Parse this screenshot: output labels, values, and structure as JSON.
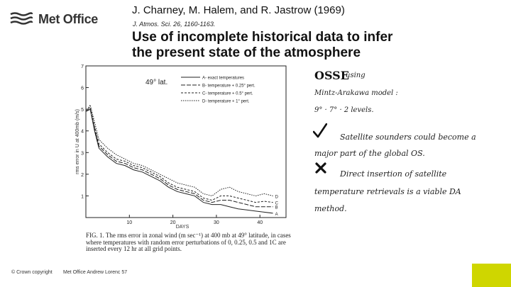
{
  "logo": {
    "text": "Met Office"
  },
  "header": {
    "authors": "J. Charney, M. Halem, and R. Jastrow (1969)",
    "journal": "J. Atmos. Sci. 26, 1160-1163.",
    "title_line1": "Use of incomplete historical data to infer",
    "title_line2": "the present state of the atmosphere"
  },
  "figure": {
    "lat_label": "49° lat.",
    "legend": [
      "A- exact temperatures",
      "B- temperature + 0.25° pert.",
      "C- temperature + 0.5° pert.",
      "D- temperature + 1° pert."
    ],
    "ylabel": "rms error in U at 400mb (m/s)",
    "xlabel": "DAYS",
    "yticks": [
      "7",
      "6",
      "5",
      "4",
      "3",
      "2",
      "1"
    ],
    "xticks": [
      "10",
      "20",
      "30",
      "40"
    ],
    "end_labels": [
      "D",
      "C",
      "B",
      "A"
    ]
  },
  "chart_data": {
    "type": "line",
    "title": "49° lat.",
    "xlabel": "DAYS",
    "ylabel": "rms error in U at 400mb (m/s)",
    "xlim": [
      0,
      46
    ],
    "ylim": [
      0,
      7
    ],
    "x": [
      0,
      1,
      2,
      3,
      5,
      7,
      9,
      11,
      13,
      15,
      17,
      19,
      21,
      23,
      25,
      27,
      29,
      31,
      33,
      35,
      37,
      39,
      41,
      43
    ],
    "series": [
      {
        "name": "D- temperature + 1° pert.",
        "values": [
          4.9,
          5.2,
          4.4,
          3.6,
          3.2,
          2.9,
          2.7,
          2.5,
          2.4,
          2.2,
          2.0,
          1.8,
          1.6,
          1.5,
          1.4,
          1.1,
          1.0,
          1.3,
          1.4,
          1.2,
          1.1,
          1.0,
          1.1,
          1.0
        ]
      },
      {
        "name": "C- temperature + 0.5° pert.",
        "values": [
          4.9,
          5.1,
          4.2,
          3.4,
          3.0,
          2.7,
          2.6,
          2.4,
          2.3,
          2.1,
          1.9,
          1.6,
          1.4,
          1.3,
          1.2,
          0.9,
          0.8,
          1.0,
          1.0,
          0.9,
          0.8,
          0.7,
          0.75,
          0.7
        ]
      },
      {
        "name": "B- temperature + 0.25° pert.",
        "values": [
          4.9,
          5.0,
          4.1,
          3.3,
          2.9,
          2.6,
          2.5,
          2.3,
          2.2,
          2.0,
          1.8,
          1.5,
          1.3,
          1.2,
          1.1,
          0.8,
          0.7,
          0.8,
          0.8,
          0.7,
          0.6,
          0.5,
          0.5,
          0.5
        ]
      },
      {
        "name": "A- exact temperatures",
        "values": [
          4.9,
          5.0,
          4.0,
          3.2,
          2.8,
          2.5,
          2.4,
          2.2,
          2.1,
          1.9,
          1.7,
          1.4,
          1.2,
          1.1,
          1.0,
          0.7,
          0.6,
          0.6,
          0.5,
          0.4,
          0.35,
          0.3,
          0.25,
          0.2
        ]
      }
    ],
    "grid": false,
    "legend_position": "top-right"
  },
  "caption": {
    "text": "FIG. 1. The rms error in zonal wind (m sec⁻¹) at 400 mb at 49° latitude, in cases where temperatures with random error perturbations of 0, 0.25, 0.5 and 1C are inserted every 12 hr at all grid points."
  },
  "notes": {
    "osse": "OSSE",
    "using": "using",
    "model_line": "Mintz-Arakawa model :",
    "grid_line": "9° · 7° · 2 levels.",
    "sat1_a": "Satellite sounders could become a",
    "sat1_b": "major part of the global OS.",
    "sat2_a": "Direct insertion of satellite",
    "sat2_b": "temperature retrievals is a viable DA",
    "sat2_c": "method."
  },
  "footer": {
    "copyright": "© Crown copyright",
    "credit": "Met Office Andrew Lorenc 57"
  },
  "colors": {
    "accent": "#cfd600",
    "check": "#111111",
    "cross": "#111111"
  }
}
